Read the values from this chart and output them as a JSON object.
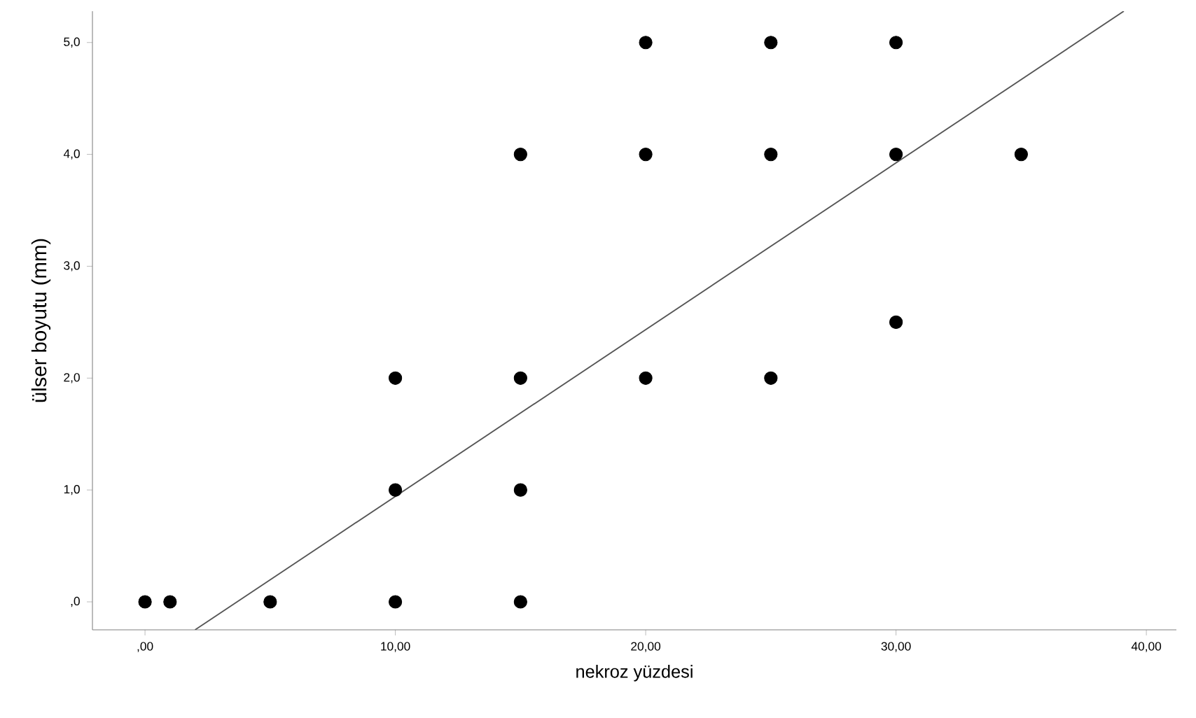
{
  "chart_data": {
    "type": "scatter",
    "xlabel": "nekroz yüzdesi",
    "ylabel": "ülser boyutu (mm)",
    "xlim": [
      -2.1,
      41.2
    ],
    "ylim": [
      -0.25,
      5.28
    ],
    "xticks": [
      {
        "value": 0,
        "label": ",00"
      },
      {
        "value": 10,
        "label": "10,00"
      },
      {
        "value": 20,
        "label": "20,00"
      },
      {
        "value": 30,
        "label": "30,00"
      },
      {
        "value": 40,
        "label": "40,00"
      }
    ],
    "yticks": [
      {
        "value": 0,
        "label": ",0"
      },
      {
        "value": 1,
        "label": "1,0"
      },
      {
        "value": 2,
        "label": "2,0"
      },
      {
        "value": 3,
        "label": "3,0"
      },
      {
        "value": 4,
        "label": "4,0"
      },
      {
        "value": 5,
        "label": "5,0"
      }
    ],
    "line_style": "solid",
    "grid": false,
    "series": [
      {
        "marker": "circle",
        "color": "#000000",
        "x": [
          0,
          1,
          5,
          10,
          10,
          10,
          15,
          15,
          15,
          15,
          20,
          20,
          20,
          25,
          25,
          25,
          30,
          30,
          30,
          35
        ],
        "values": [
          0,
          0,
          0,
          0,
          1,
          2,
          0,
          1,
          2,
          4,
          2,
          4,
          5,
          2,
          4,
          5,
          2.5,
          4,
          5,
          4
        ]
      },
      {
        "type": "line",
        "marker": "none",
        "color": "#555555",
        "x": [
          2.0,
          39.1
        ],
        "values": [
          -0.25,
          5.28
        ]
      }
    ]
  }
}
